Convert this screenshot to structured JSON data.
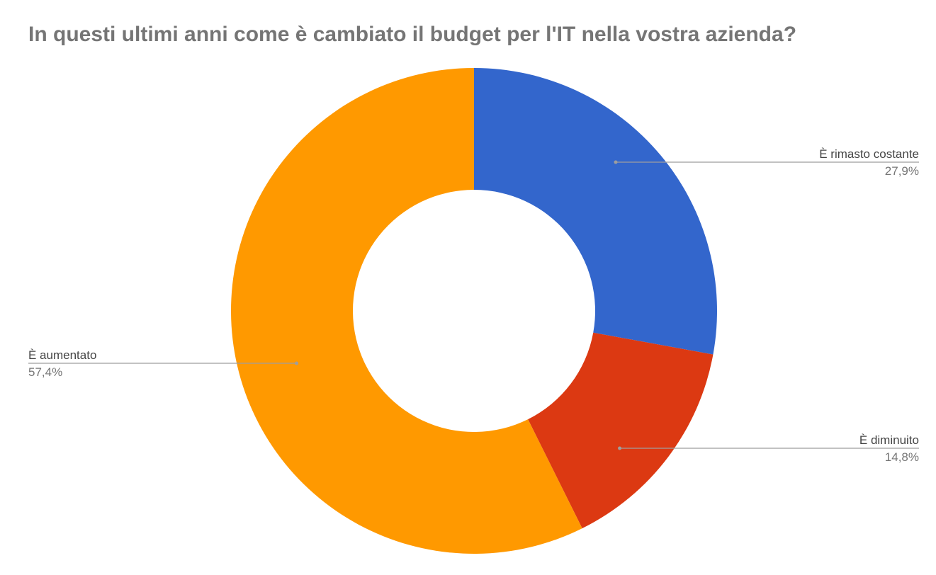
{
  "chart_data": {
    "type": "pie",
    "subtype": "donut",
    "title": "In questi ultimi anni come è cambiato il budget per l'IT nella vostra azienda?",
    "slices": [
      {
        "label": "È rimasto costante",
        "value": 27.9,
        "display": "27,9%",
        "color": "#3366cc"
      },
      {
        "label": "È diminuito",
        "value": 14.8,
        "display": "14,8%",
        "color": "#dc3912"
      },
      {
        "label": "È aumentato",
        "value": 57.4,
        "display": "57,4%",
        "color": "#ff9900"
      }
    ],
    "start_angle": "top",
    "direction": "clockwise",
    "legend": "none",
    "labels": "callout"
  }
}
